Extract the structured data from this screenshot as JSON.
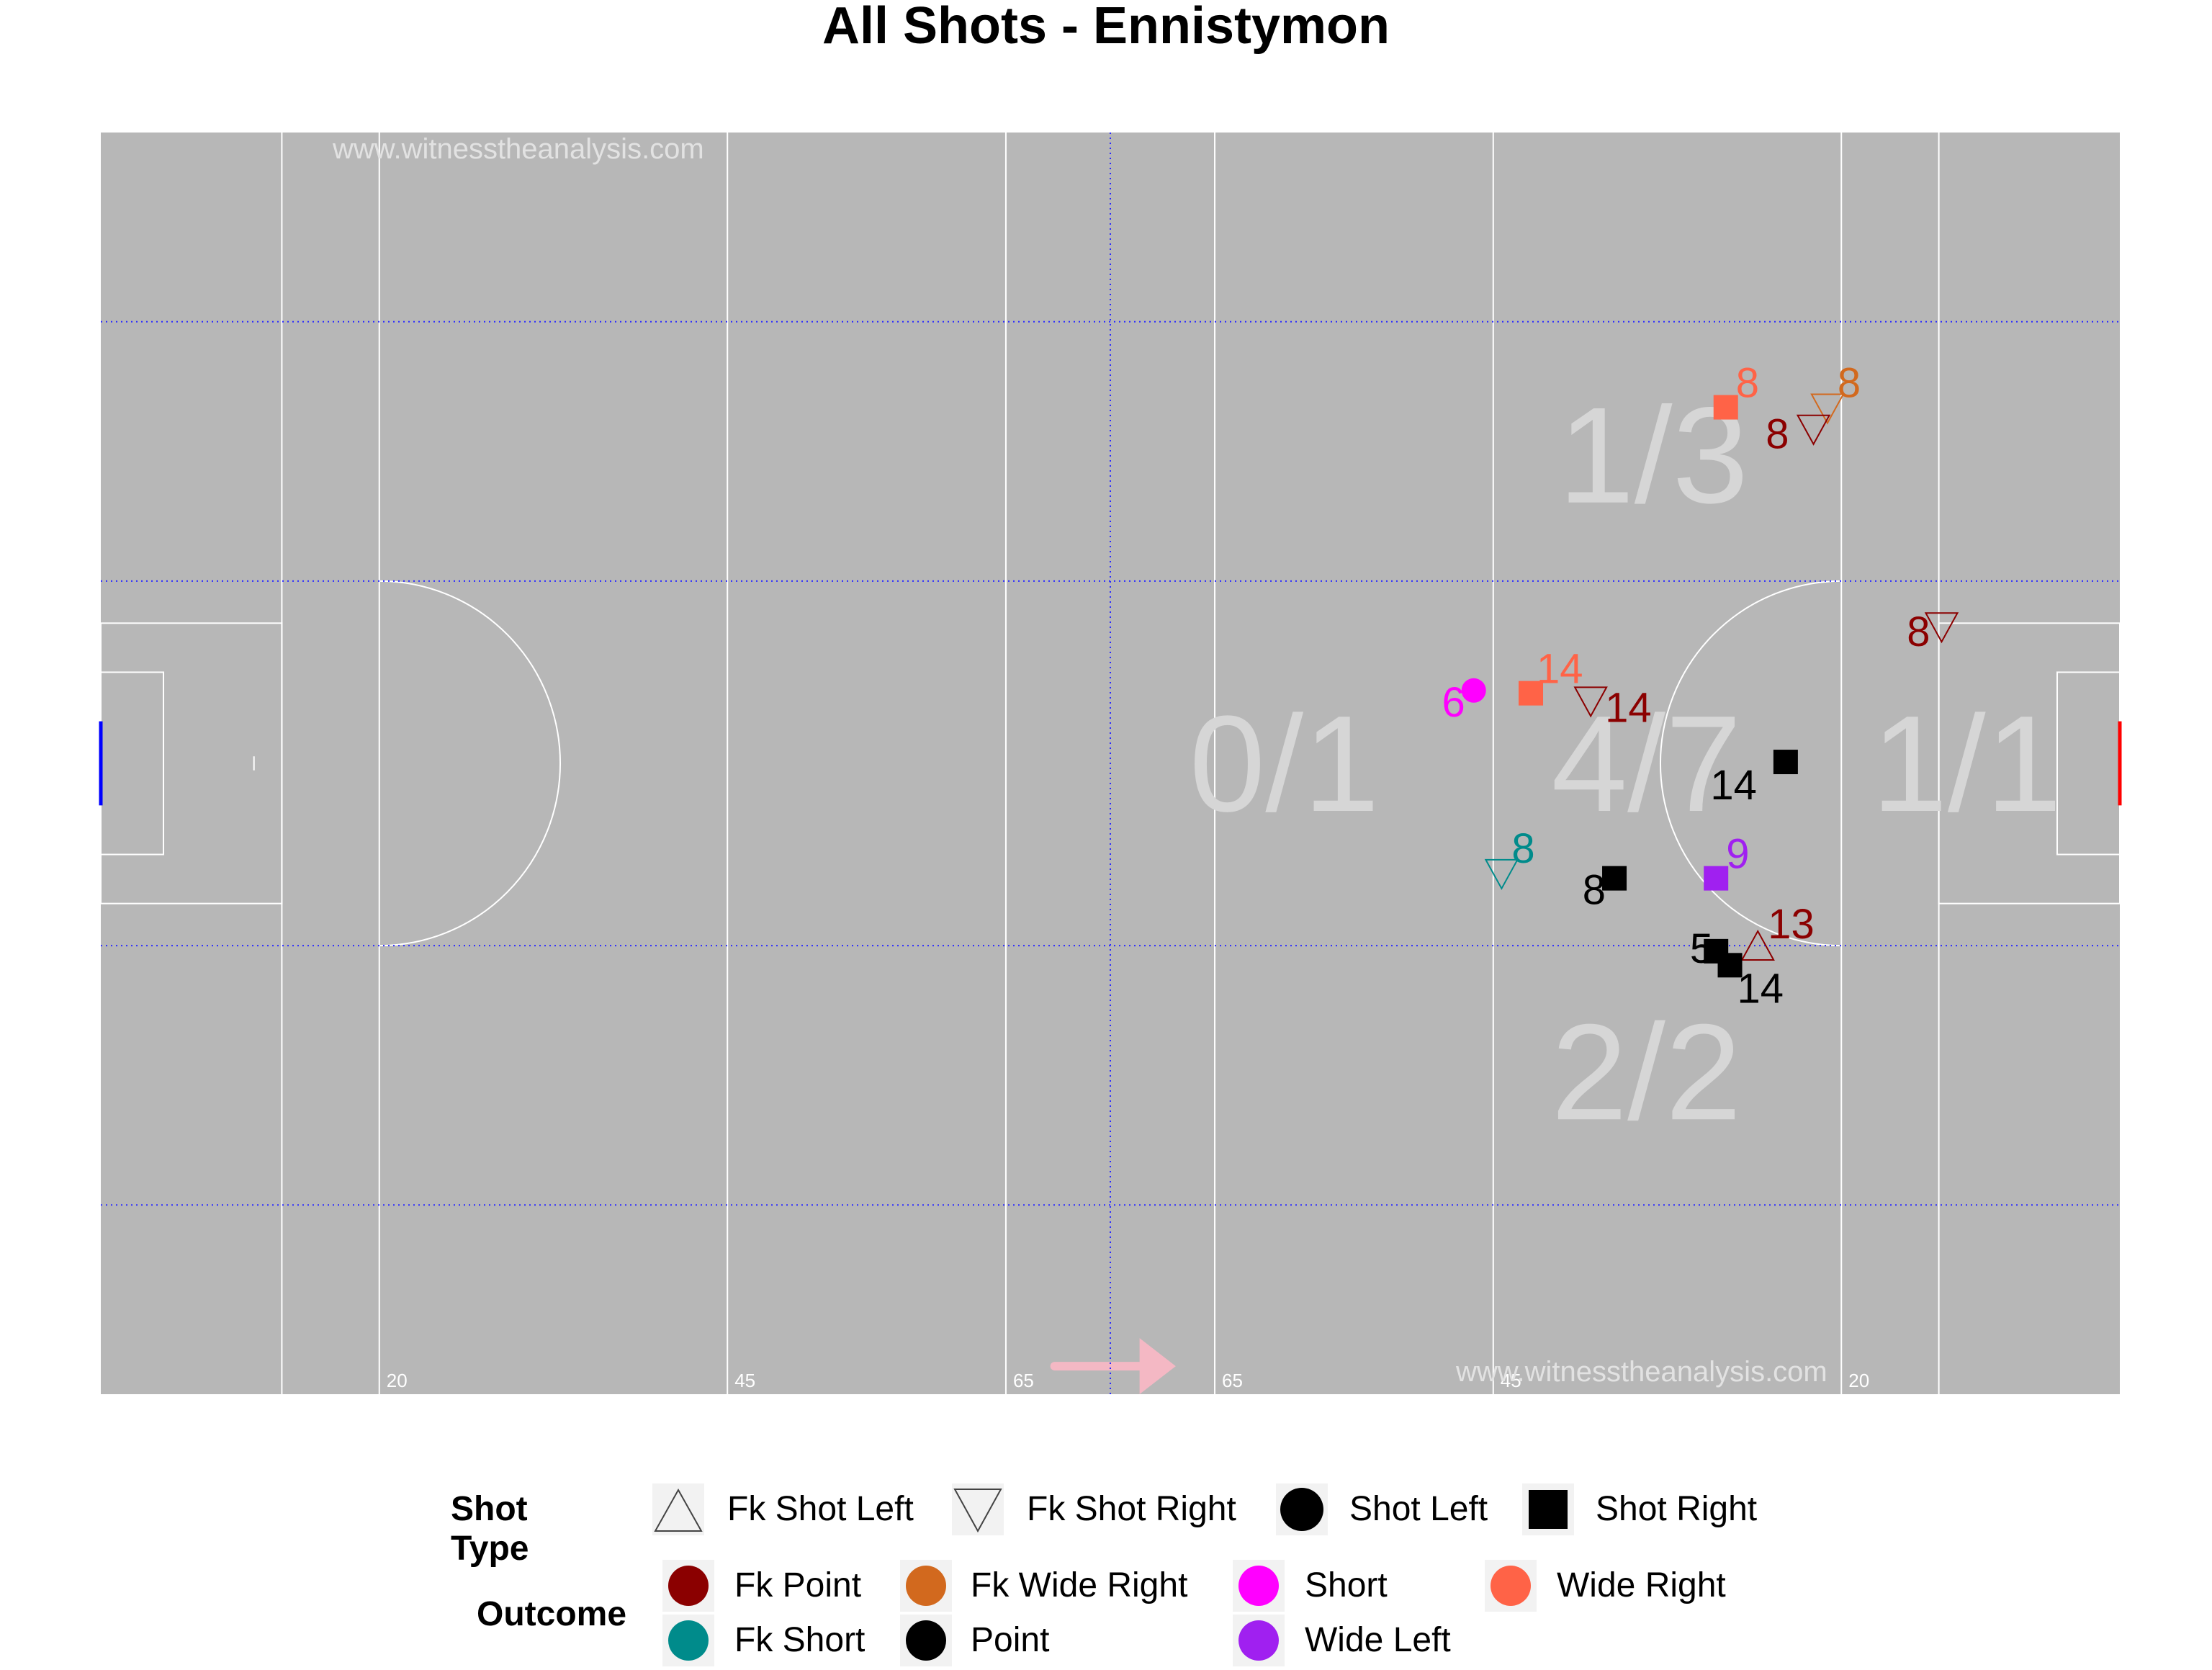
{
  "title": "All Shots - Ennistymon",
  "watermark": "www.witnesstheanalysis.com",
  "colors": {
    "pitch": "#b7b7b7",
    "pitch_lines": "#ffffff",
    "grid": "#2b2bff",
    "zone_text": "#d6d6d6",
    "direction_arrow": "#f4b8c4",
    "left_goal": "#0000ff",
    "right_goal": "#ff0000"
  },
  "pitch_markings": {
    "line_labels": [
      "20",
      "45",
      "65",
      "65",
      "45",
      "20"
    ]
  },
  "chart_data": {
    "type": "scatter",
    "title": "All Shots - Ennistymon",
    "xlim": [
      0,
      145
    ],
    "ylim": [
      0,
      90
    ],
    "grid": true,
    "legend_position": "bottom",
    "zones": [
      {
        "label": "1/3",
        "x": 111.5,
        "y": 67
      },
      {
        "label": "0/1",
        "x": 85,
        "y": 45
      },
      {
        "label": "4/7",
        "x": 111,
        "y": 45
      },
      {
        "label": "1/1",
        "x": 134,
        "y": 45
      },
      {
        "label": "2/2",
        "x": 111,
        "y": 23
      }
    ],
    "shots": [
      {
        "player": "8",
        "x": 116.7,
        "y": 70.4,
        "shot_type": "Shot Right",
        "outcome": "Wide Right"
      },
      {
        "player": "8",
        "x": 124.0,
        "y": 70.4,
        "shot_type": "Fk Shot Right",
        "outcome": "Fk Wide Right"
      },
      {
        "player": "8",
        "x": 123.0,
        "y": 68.9,
        "shot_type": "Fk Shot Right",
        "outcome": "Fk Point"
      },
      {
        "player": "8",
        "x": 132.2,
        "y": 54.8,
        "shot_type": "Fk Shot Right",
        "outcome": "Fk Point"
      },
      {
        "player": "6",
        "x": 98.6,
        "y": 50.2,
        "shot_type": "Shot Left",
        "outcome": "Short"
      },
      {
        "player": "14",
        "x": 102.7,
        "y": 50.0,
        "shot_type": "Shot Right",
        "outcome": "Wide Right"
      },
      {
        "player": "14",
        "x": 107.0,
        "y": 49.5,
        "shot_type": "Fk Shot Right",
        "outcome": "Fk Point"
      },
      {
        "player": "14",
        "x": 121.0,
        "y": 45.1,
        "shot_type": "Shot Right",
        "outcome": "Point"
      },
      {
        "player": "8",
        "x": 100.6,
        "y": 37.2,
        "shot_type": "Fk Shot Right",
        "outcome": "Fk Short"
      },
      {
        "player": "8",
        "x": 108.7,
        "y": 36.8,
        "shot_type": "Shot Right",
        "outcome": "Point"
      },
      {
        "player": "9",
        "x": 116.0,
        "y": 36.8,
        "shot_type": "Shot Right",
        "outcome": "Wide Left"
      },
      {
        "player": "13",
        "x": 119.0,
        "y": 31.9,
        "shot_type": "Fk Shot Left",
        "outcome": "Fk Point"
      },
      {
        "player": "5",
        "x": 116.0,
        "y": 31.6,
        "shot_type": "Shot Right",
        "outcome": "Point"
      },
      {
        "player": "14",
        "x": 117.0,
        "y": 30.6,
        "shot_type": "Shot Right",
        "outcome": "Point"
      }
    ],
    "legend": {
      "shot_type_title": "Shot Type",
      "shot_types": [
        {
          "name": "Fk Shot Left",
          "shape": "triangle-up-open"
        },
        {
          "name": "Fk Shot Right",
          "shape": "triangle-down-open"
        },
        {
          "name": "Shot Left",
          "shape": "circle"
        },
        {
          "name": "Shot Right",
          "shape": "square"
        }
      ],
      "outcome_title": "Outcome",
      "outcomes": [
        {
          "name": "Fk Point",
          "color": "#8b0000"
        },
        {
          "name": "Fk Short",
          "color": "#008b8b"
        },
        {
          "name": "Fk Wide Right",
          "color": "#d2691e"
        },
        {
          "name": "Point",
          "color": "#000000"
        },
        {
          "name": "Short",
          "color": "#ff00ff"
        },
        {
          "name": "Wide Left",
          "color": "#a020f0"
        },
        {
          "name": "Wide Right",
          "color": "#ff6347"
        }
      ]
    }
  }
}
